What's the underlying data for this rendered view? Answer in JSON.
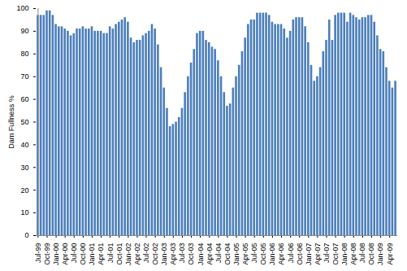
{
  "chart_data": {
    "type": "bar",
    "y_label": "Dam Fullness %",
    "categories": [
      "Jul-99",
      null,
      null,
      "Oct-99",
      null,
      null,
      "Jan-00",
      null,
      null,
      "Apr-00",
      null,
      null,
      "Jul-00",
      null,
      null,
      "Oct-00",
      null,
      null,
      "Jan-01",
      null,
      null,
      "Apr-01",
      null,
      null,
      "Jul-01",
      null,
      null,
      "Oct-01",
      null,
      null,
      "Jan-02",
      null,
      null,
      "Apr-02",
      null,
      null,
      "Jul-02",
      null,
      null,
      "Oct-02",
      null,
      null,
      "Jan-03",
      null,
      null,
      "Apr-03",
      null,
      null,
      "Jul-03",
      null,
      null,
      "Oct-03",
      null,
      null,
      "Jan-04",
      null,
      null,
      "Apr-04",
      null,
      null,
      "Jul-04",
      null,
      null,
      "Oct-04",
      null,
      null,
      "Jan-05",
      null,
      null,
      "Apr-05",
      null,
      null,
      "Jul-05",
      null,
      null,
      "Oct-05",
      null,
      null,
      "Jan-06",
      null,
      null,
      "Apr-06",
      null,
      null,
      "Jul-06",
      null,
      null,
      "Oct-06",
      null,
      null,
      "Jan-07",
      null,
      null,
      "Apr-07",
      null,
      null,
      "Jul-07",
      null,
      null,
      "Oct-07",
      null,
      null,
      "Jan-08",
      null,
      null,
      "Apr-08",
      null,
      null,
      "Jul-08",
      null,
      null,
      "Oct-08",
      null,
      null,
      "Jan-09",
      null,
      null,
      "Apr-09",
      null,
      null
    ],
    "values": [
      97,
      97,
      97,
      99,
      99,
      97,
      93,
      92,
      92,
      91,
      90,
      88,
      89,
      91,
      91,
      92,
      91,
      91,
      92,
      90,
      90,
      90,
      89,
      89,
      92,
      91,
      93,
      94,
      95,
      96,
      94,
      87,
      85,
      86,
      86,
      88,
      89,
      90,
      93,
      91,
      84,
      74,
      65,
      56,
      48,
      49,
      50,
      52,
      56,
      63,
      70,
      76,
      82,
      89,
      90,
      90,
      86,
      85,
      83,
      82,
      77,
      70,
      63,
      57,
      58,
      65,
      70,
      75,
      81,
      87,
      93,
      95,
      95,
      98,
      98,
      98,
      98,
      97,
      94,
      93,
      93,
      93,
      91,
      87,
      90,
      95,
      96,
      96,
      96,
      92,
      85,
      75,
      68,
      70,
      74,
      81,
      86,
      95,
      86,
      97,
      98,
      98,
      98,
      94,
      98,
      97,
      96,
      95,
      96,
      96,
      97,
      97,
      94,
      88,
      82,
      81,
      74,
      68,
      65,
      68
    ],
    "color": "#4a7ebb",
    "ylim": [
      0,
      100
    ],
    "yticks": [
      0,
      10,
      20,
      30,
      40,
      50,
      60,
      70,
      80,
      90,
      100
    ],
    "grid": false
  }
}
